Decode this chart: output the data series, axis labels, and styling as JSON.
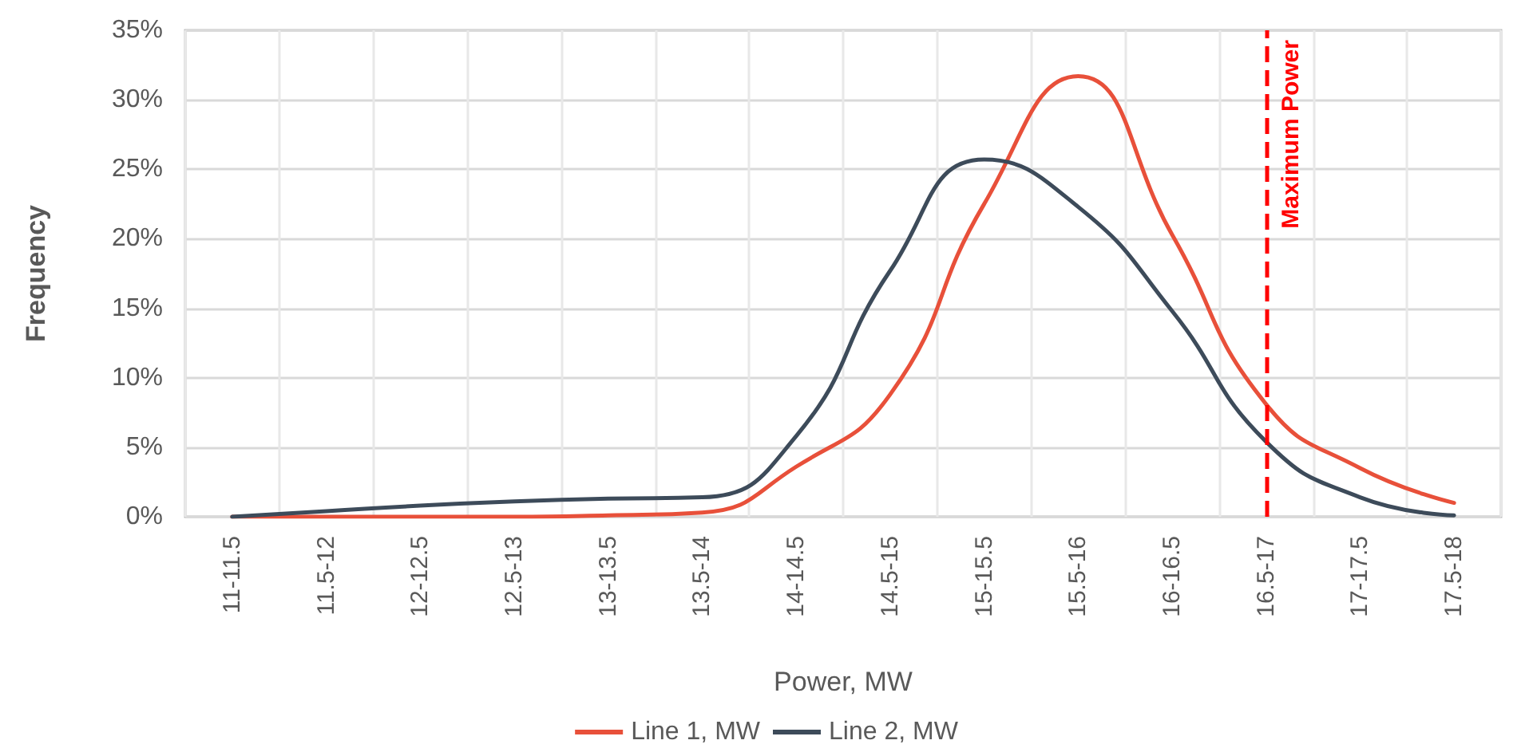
{
  "chart_data": {
    "type": "line",
    "xlabel": "Power, MW",
    "ylabel": "Frequency",
    "categories": [
      "11-11.5",
      "11.5-12",
      "12-12.5",
      "12.5-13",
      "13-13.5",
      "13.5-14",
      "14-14.5",
      "14.5-15",
      "15-15.5",
      "15.5-16",
      "16-16.5",
      "16.5-17",
      "17-17.5",
      "17.5-18"
    ],
    "series": [
      {
        "name": "Line 1, MW",
        "color": "#e8503a",
        "values": [
          0,
          0,
          0,
          0,
          0.1,
          0.3,
          3.6,
          8.8,
          22.5,
          31.7,
          20.3,
          8.1,
          3.5,
          1.0
        ]
      },
      {
        "name": "Line 2, MW",
        "color": "#3d4b5a",
        "values": [
          0,
          0.4,
          0.8,
          1.1,
          1.3,
          1.4,
          5.8,
          17.7,
          25.7,
          22.3,
          14.8,
          5.4,
          1.4,
          0.1
        ]
      }
    ],
    "ylim": [
      0,
      35
    ],
    "yticks": [
      {
        "value": 0,
        "label": "0%"
      },
      {
        "value": 5,
        "label": "5%"
      },
      {
        "value": 10,
        "label": "10%"
      },
      {
        "value": 15,
        "label": "15%"
      },
      {
        "value": 20,
        "label": "20%"
      },
      {
        "value": 25,
        "label": "25%"
      },
      {
        "value": 30,
        "label": "30%"
      },
      {
        "value": 35,
        "label": "35%"
      }
    ],
    "ref_lines": [
      {
        "axis": "x",
        "value": "16.5-17",
        "label": "Maximum Power",
        "color": "#ff0000",
        "line_style": "dashed"
      }
    ],
    "grid": true,
    "legend": "bottom",
    "marker": "none",
    "line_style": "solid"
  }
}
